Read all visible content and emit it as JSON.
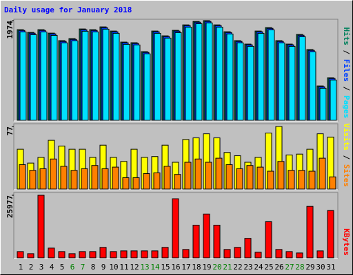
{
  "chart_data": [
    {
      "type": "bar",
      "title": "Daily usage for January 2018",
      "legend_separator": " / ",
      "ylim": [
        0,
        1974
      ],
      "yticks": [
        1974
      ],
      "series": [
        {
          "name": "Hits",
          "color": "#00805c",
          "values": [
            1795,
            1741,
            1795,
            1727,
            1578,
            1618,
            1809,
            1795,
            1850,
            1768,
            1550,
            1537,
            1360,
            1768,
            1673,
            1782,
            1890,
            1958,
            1974,
            1890,
            1754,
            1578,
            1510,
            1768,
            1836,
            1578,
            1510,
            1700,
            1401,
            680,
            843
          ]
        },
        {
          "name": "Files",
          "color": "#0040ff",
          "values": [
            1780,
            1726,
            1780,
            1712,
            1563,
            1603,
            1794,
            1780,
            1835,
            1753,
            1535,
            1522,
            1345,
            1753,
            1658,
            1767,
            1875,
            1943,
            1959,
            1875,
            1739,
            1563,
            1495,
            1753,
            1821,
            1563,
            1495,
            1685,
            1386,
            665,
            828
          ]
        },
        {
          "name": "Pages",
          "color": "#00e0ff",
          "values": [
            1750,
            1696,
            1750,
            1682,
            1533,
            1573,
            1764,
            1750,
            1805,
            1723,
            1505,
            1492,
            1315,
            1723,
            1628,
            1737,
            1845,
            1913,
            1929,
            1845,
            1709,
            1533,
            1465,
            1723,
            1791,
            1533,
            1465,
            1655,
            1356,
            635,
            798
          ]
        }
      ]
    },
    {
      "type": "bar",
      "ylim": [
        0,
        77
      ],
      "yticks": [
        77
      ],
      "series": [
        {
          "name": "Visits",
          "color": "#ffff00",
          "values": [
            49,
            32,
            39,
            60,
            53,
            49,
            49,
            39,
            54,
            39,
            34,
            49,
            39,
            40,
            54,
            33,
            61,
            63,
            68,
            63,
            45,
            41,
            33,
            39,
            69,
            77,
            42,
            43,
            49,
            68,
            64
          ]
        },
        {
          "name": "Sites",
          "color": "#ff8000",
          "values": [
            30,
            23,
            25,
            37,
            28,
            23,
            25,
            29,
            25,
            27,
            14,
            14,
            19,
            20,
            28,
            18,
            33,
            37,
            33,
            38,
            30,
            25,
            29,
            27,
            22,
            34,
            23,
            23,
            22,
            38,
            15
          ]
        }
      ]
    },
    {
      "type": "bar",
      "ylim": [
        0,
        25977
      ],
      "yticks": [
        25977
      ],
      "categories": [
        "1",
        "2",
        "3",
        "4",
        "5",
        "6",
        "7",
        "8",
        "9",
        "10",
        "11",
        "12",
        "13",
        "14",
        "15",
        "16",
        "17",
        "18",
        "19",
        "20",
        "21",
        "22",
        "23",
        "24",
        "25",
        "26",
        "27",
        "28",
        "29",
        "30",
        "31"
      ],
      "category_colors": [
        "#000000",
        "#000000",
        "#000000",
        "#000000",
        "#000000",
        "#008000",
        "#008000",
        "#000000",
        "#000000",
        "#000000",
        "#000000",
        "#000000",
        "#008000",
        "#008000",
        "#000000",
        "#000000",
        "#000000",
        "#000000",
        "#000000",
        "#008000",
        "#008000",
        "#000000",
        "#000000",
        "#000000",
        "#000000",
        "#000000",
        "#008000",
        "#008000",
        "#000000",
        "#000000",
        "#000000"
      ],
      "series": [
        {
          "name": "KBytes",
          "color": "#ff0000",
          "values": [
            2597,
            1732,
            25977,
            4040,
            2597,
            1732,
            2597,
            2597,
            4329,
            2597,
            2886,
            2886,
            2886,
            2886,
            4329,
            24531,
            3463,
            13564,
            18182,
            13564,
            3463,
            4329,
            8081,
            2309,
            15007,
            3463,
            2597,
            2020,
            21356,
            2886,
            19625
          ]
        }
      ]
    }
  ]
}
